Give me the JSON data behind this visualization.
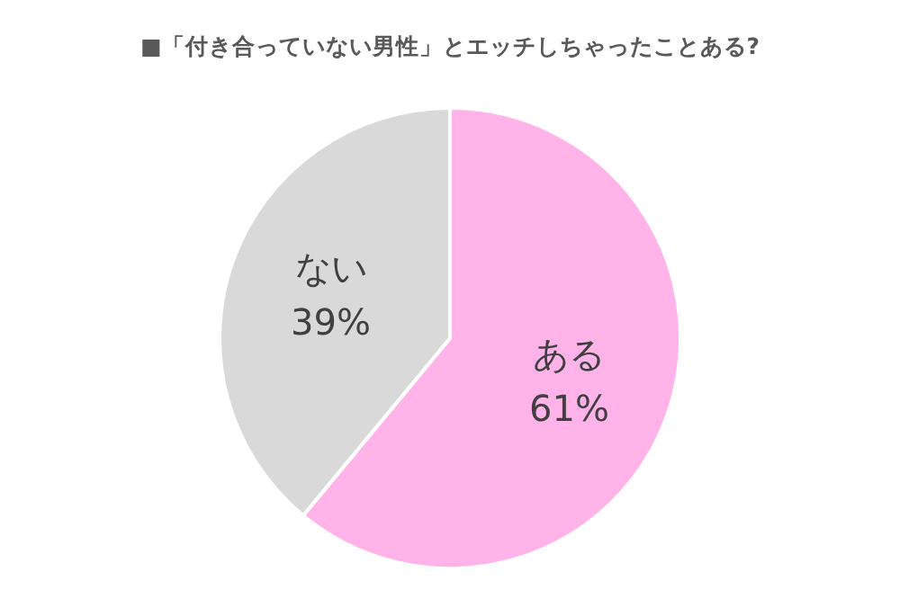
{
  "chart_data": {
    "type": "pie",
    "title": "■「付き合っていない男性」とエッチしちゃったことある?",
    "categories": [
      "ある",
      "ない"
    ],
    "values": [
      61,
      39
    ],
    "colors": [
      "#ffb3e8",
      "#d9d9d9"
    ],
    "value_labels": [
      "61%",
      "39%"
    ]
  }
}
